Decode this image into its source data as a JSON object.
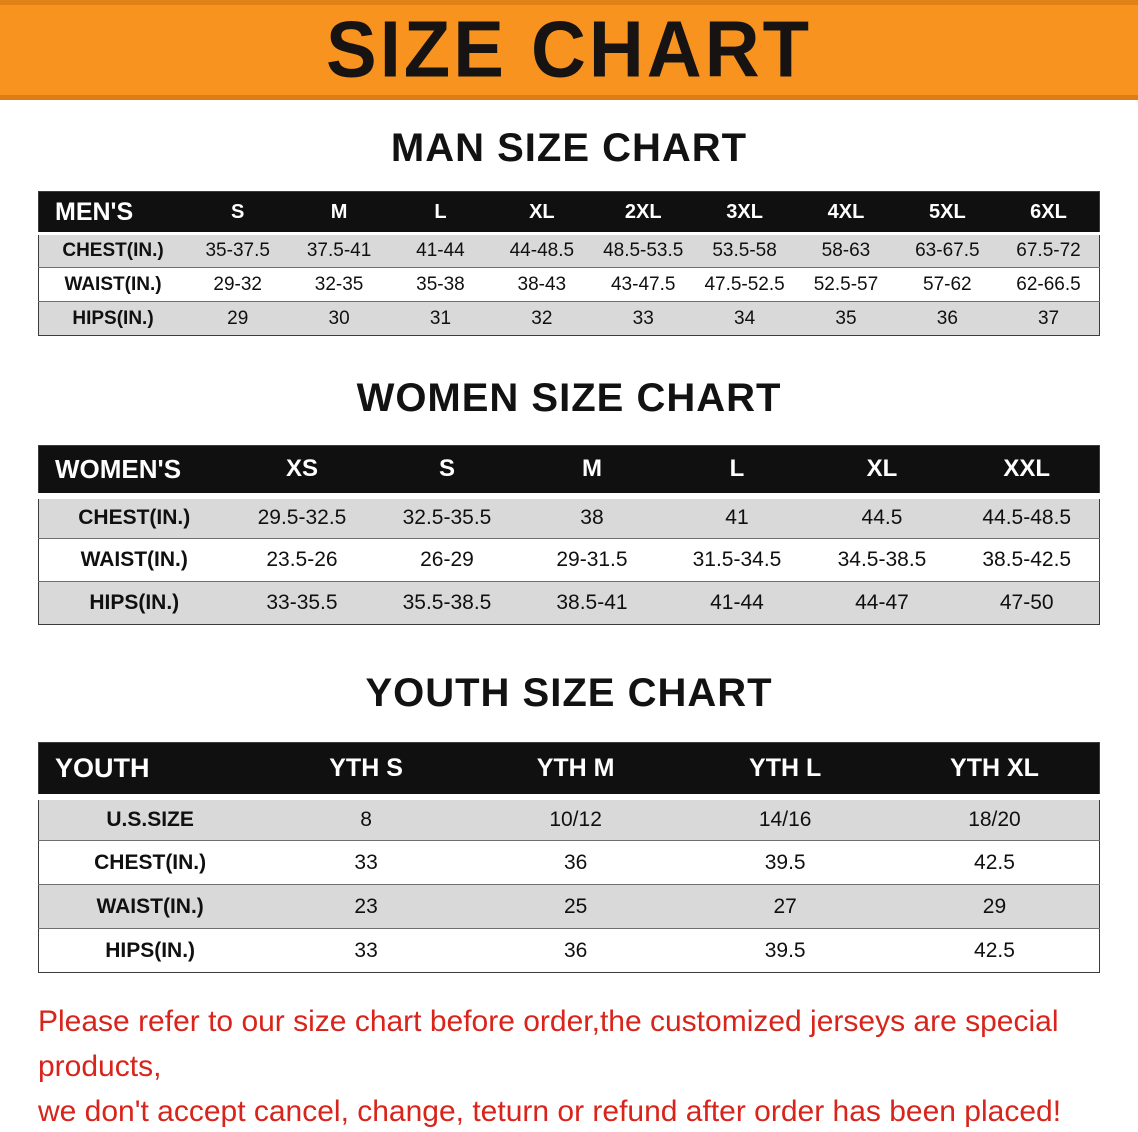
{
  "banner": {
    "title": "SIZE CHART"
  },
  "sections": [
    {
      "heading": "MAN SIZE CHART",
      "header": [
        "MEN'S",
        "S",
        "M",
        "L",
        "XL",
        "2XL",
        "3XL",
        "4XL",
        "5XL",
        "6XL"
      ],
      "rows": [
        [
          "CHEST(IN.)",
          "35-37.5",
          "37.5-41",
          "41-44",
          "44-48.5",
          "48.5-53.5",
          "53.5-58",
          "58-63",
          "63-67.5",
          "67.5-72"
        ],
        [
          "WAIST(IN.)",
          "29-32",
          "32-35",
          "35-38",
          "38-43",
          "43-47.5",
          "47.5-52.5",
          "52.5-57",
          "57-62",
          "62-66.5"
        ],
        [
          "HIPS(IN.)",
          "29",
          "30",
          "31",
          "32",
          "33",
          "34",
          "35",
          "36",
          "37"
        ]
      ]
    },
    {
      "heading": "WOMEN SIZE CHART",
      "header": [
        "WOMEN'S",
        "XS",
        "S",
        "M",
        "L",
        "XL",
        "XXL"
      ],
      "rows": [
        [
          "CHEST(IN.)",
          "29.5-32.5",
          "32.5-35.5",
          "38",
          "41",
          "44.5",
          "44.5-48.5"
        ],
        [
          "WAIST(IN.)",
          "23.5-26",
          "26-29",
          "29-31.5",
          "31.5-34.5",
          "34.5-38.5",
          "38.5-42.5"
        ],
        [
          "HIPS(IN.)",
          "33-35.5",
          "35.5-38.5",
          "38.5-41",
          "41-44",
          "44-47",
          "47-50"
        ]
      ]
    },
    {
      "heading": "YOUTH SIZE CHART",
      "header": [
        "YOUTH",
        "YTH S",
        "YTH M",
        "YTH L",
        "YTH XL"
      ],
      "rows": [
        [
          "U.S.SIZE",
          "8",
          "10/12",
          "14/16",
          "18/20"
        ],
        [
          "CHEST(IN.)",
          "33",
          "36",
          "39.5",
          "42.5"
        ],
        [
          "WAIST(IN.)",
          "23",
          "25",
          "27",
          "29"
        ],
        [
          "HIPS(IN.)",
          "33",
          "36",
          "39.5",
          "42.5"
        ]
      ]
    }
  ],
  "footer": {
    "line1": "Please refer to our size chart before order,the customized jerseys are special products,",
    "line2": "we don't accept cancel, change, teturn or refund after order has been placed!"
  },
  "colors": {
    "banner_orange": "#f7931e",
    "header_black": "#101010",
    "row_gray": "#d9d9d9",
    "notice_red": "#d8241b"
  }
}
